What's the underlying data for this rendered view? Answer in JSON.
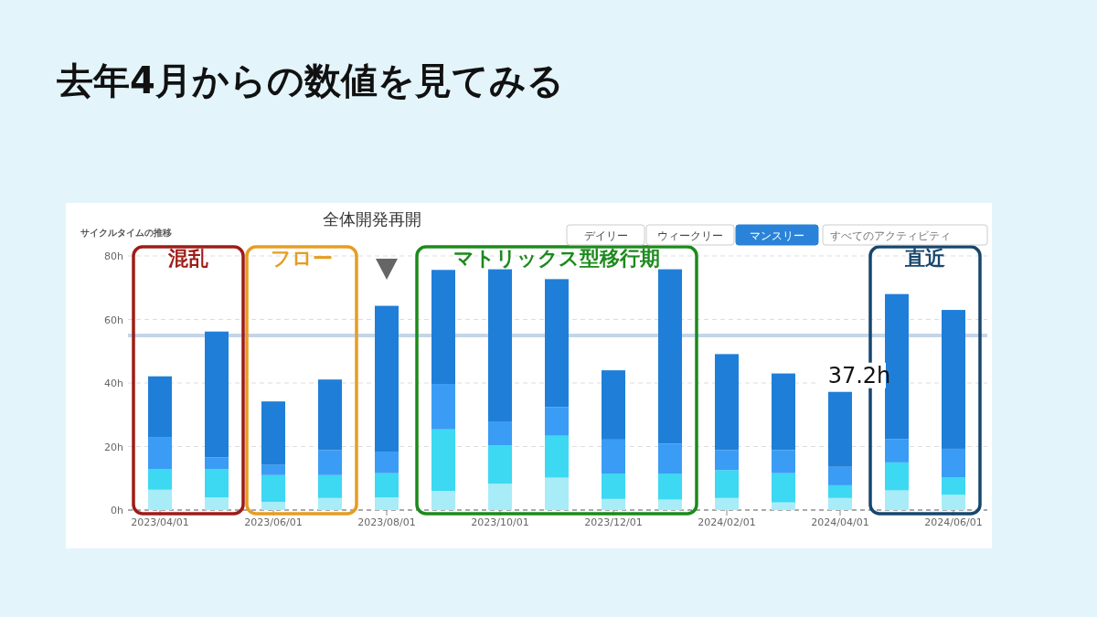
{
  "chart_data": {
    "type": "bar",
    "stacked": true,
    "title": "去年4月からの数値を見てみる",
    "categories": [
      "2023/04/01",
      null,
      "2023/06/01",
      null,
      "2023/08/01",
      null,
      "2023/10/01",
      null,
      "2023/12/01",
      null,
      "2024/02/01",
      null,
      "2024/04/01",
      null,
      "2024/06/01"
    ],
    "series": [
      {
        "color": "#a8ecf8",
        "values": [
          6.4,
          4.0,
          2.6,
          3.8,
          4.0,
          6.0,
          8.3,
          10.2,
          3.5,
          3.3,
          3.8,
          2.4,
          3.8,
          6.2,
          4.8
        ]
      },
      {
        "color": "#3dd8f2",
        "values": [
          6.5,
          8.9,
          8.4,
          7.2,
          7.6,
          19.4,
          12.1,
          13.2,
          8.0,
          8.2,
          8.8,
          9.2,
          4.0,
          8.8,
          5.4
        ]
      },
      {
        "color": "#3a9cf4",
        "values": [
          10.1,
          3.7,
          3.2,
          7.9,
          6.8,
          14.3,
          7.5,
          9.0,
          10.7,
          9.4,
          6.3,
          7.3,
          5.8,
          7.3,
          9.1
        ]
      },
      {
        "color": "#1f7fd8",
        "values": [
          19.1,
          39.6,
          20.0,
          22.2,
          45.9,
          35.9,
          47.9,
          40.3,
          21.8,
          54.9,
          30.2,
          24.1,
          23.6,
          45.7,
          43.7
        ]
      }
    ],
    "ylim": [
      0,
      80
    ],
    "yticks": [
      {
        "value": 0,
        "label": "0h"
      },
      {
        "value": 20,
        "label": "20h"
      },
      {
        "value": 40,
        "label": "40h"
      },
      {
        "value": 60,
        "label": "60h"
      },
      {
        "value": 80,
        "label": "80h"
      }
    ],
    "grid": "y",
    "ref_lines": [
      {
        "axis": "y",
        "value": 55,
        "color": "#c4d5e8"
      }
    ],
    "annotations": [
      "サイクルタイムの推移",
      "全体開発再開",
      "混乱",
      "フロー",
      "マトリックス型移行期",
      "直近",
      {
        "text": "37.2h",
        "x": "2024/04/01",
        "y": 37.2
      },
      "デイリー",
      "ウィークリー",
      "マンスリー",
      "すべてのアクティビティ"
    ]
  }
}
